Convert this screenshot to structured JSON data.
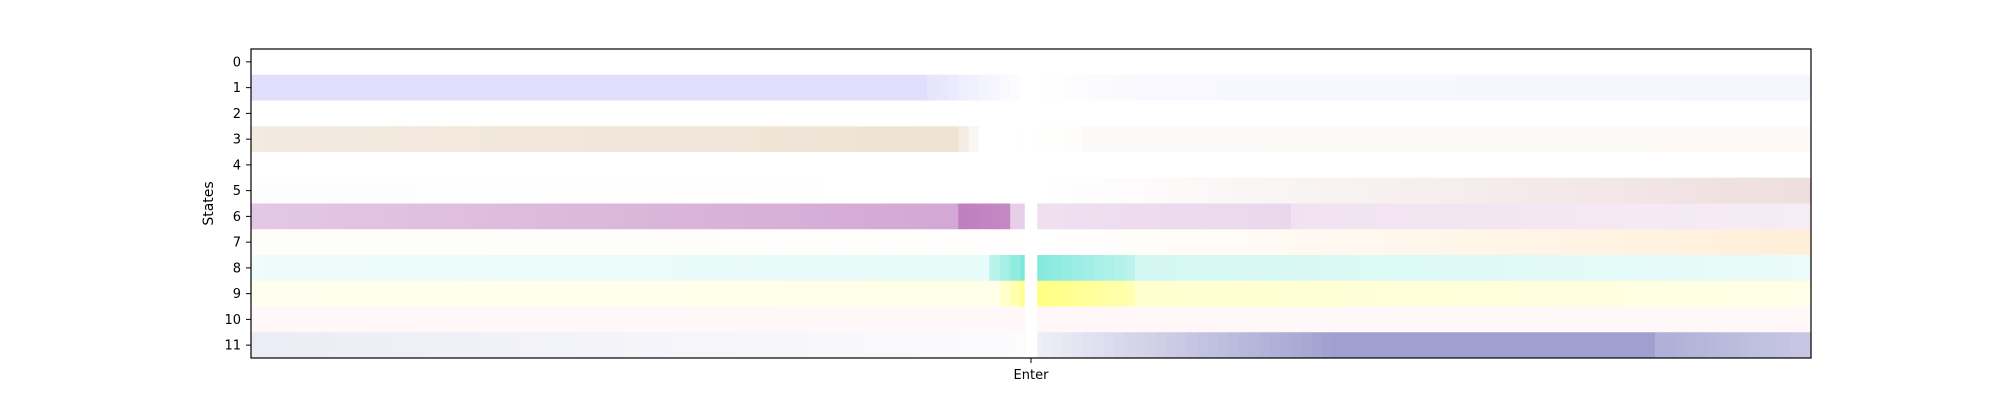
{
  "chart_data": {
    "type": "heatmap",
    "title": "",
    "xlabel": "",
    "ylabel": "States",
    "y_tick_labels": [
      "0",
      "1",
      "2",
      "3",
      "4",
      "5",
      "6",
      "7",
      "8",
      "9",
      "10",
      "11"
    ],
    "x_tick_labels": [
      "Enter"
    ],
    "n_columns": 150,
    "marker_column": 74.5,
    "grid": false,
    "rows": [
      {
        "state": "0",
        "color": "#ffffff",
        "segments": [
          [
            0,
            149,
            0.0,
            0.0
          ]
        ]
      },
      {
        "state": "1",
        "color": "#7070f0",
        "segments": [
          [
            0,
            64,
            0.22,
            0.22
          ],
          [
            65,
            74,
            0.18,
            0.0
          ],
          [
            75,
            84,
            0.0,
            0.04
          ],
          [
            85,
            149,
            0.05,
            0.07
          ]
        ]
      },
      {
        "state": "2",
        "color": "#ffffff",
        "segments": [
          [
            0,
            149,
            0.0,
            0.0
          ]
        ]
      },
      {
        "state": "3",
        "color": "#c8a070",
        "segments": [
          [
            0,
            66,
            0.22,
            0.3
          ],
          [
            67,
            70,
            0.3,
            0.0
          ],
          [
            71,
            79,
            0.0,
            0.02
          ],
          [
            80,
            149,
            0.05,
            0.06
          ]
        ]
      },
      {
        "state": "4",
        "color": "#ffffff",
        "segments": [
          [
            0,
            149,
            0.0,
            0.0
          ]
        ]
      },
      {
        "state": "5",
        "color": "#d0a0a0",
        "segments": [
          [
            0,
            74,
            0.02,
            0.0
          ],
          [
            75,
            149,
            0.0,
            0.35
          ]
        ]
      },
      {
        "state": "6",
        "color": "#b060b0",
        "segments": [
          [
            0,
            67,
            0.35,
            0.55
          ],
          [
            68,
            72,
            0.8,
            0.75
          ],
          [
            73,
            74,
            0.3,
            0.3
          ],
          [
            75,
            99,
            0.2,
            0.25
          ],
          [
            100,
            149,
            0.18,
            0.12
          ]
        ]
      },
      {
        "state": "7",
        "color": "#ffd090",
        "segments": [
          [
            0,
            74,
            0.05,
            0.02
          ],
          [
            75,
            149,
            0.0,
            0.35
          ]
        ]
      },
      {
        "state": "8",
        "color": "#50e0d0",
        "segments": [
          [
            0,
            70,
            0.1,
            0.14
          ],
          [
            71,
            74,
            0.4,
            0.75
          ],
          [
            75,
            84,
            0.7,
            0.4
          ],
          [
            85,
            149,
            0.25,
            0.12
          ]
        ]
      },
      {
        "state": "9",
        "color": "#ffff60",
        "segments": [
          [
            0,
            71,
            0.1,
            0.15
          ],
          [
            72,
            74,
            0.35,
            0.7
          ],
          [
            75,
            84,
            0.8,
            0.5
          ],
          [
            85,
            149,
            0.3,
            0.15
          ]
        ]
      },
      {
        "state": "10",
        "color": "#ffd0d8",
        "segments": [
          [
            0,
            149,
            0.18,
            0.18
          ]
        ]
      },
      {
        "state": "11",
        "color": "#6060b0",
        "segments": [
          [
            0,
            74,
            0.12,
            0.02
          ],
          [
            75,
            104,
            0.1,
            0.6
          ],
          [
            105,
            134,
            0.6,
            0.6
          ],
          [
            135,
            149,
            0.5,
            0.35
          ]
        ]
      }
    ]
  }
}
